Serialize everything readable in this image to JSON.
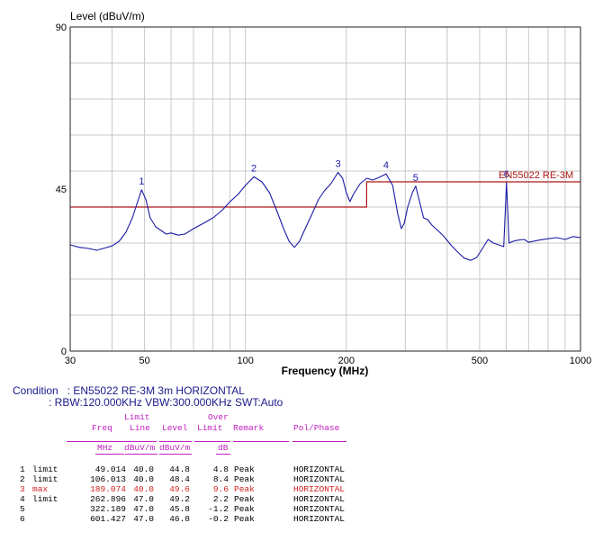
{
  "chart_data": {
    "type": "line",
    "ylabel": "Level (dBuV/m)",
    "xlabel": "Frequency (MHz)",
    "x_scale": "log",
    "xlim": [
      30,
      1000
    ],
    "ylim": [
      0,
      90
    ],
    "y_ticks": [
      "0",
      "45",
      "90"
    ],
    "x_tick_labels": [
      {
        "v": 30,
        "t": "30"
      },
      {
        "v": 50,
        "t": "50"
      },
      {
        "v": 100,
        "t": "100"
      },
      {
        "v": 200,
        "t": "200"
      },
      {
        "v": 500,
        "t": "500"
      },
      {
        "v": 1000,
        "t": "1000"
      }
    ],
    "grid": true,
    "limit_label": "EN55022 RE-3M",
    "limit_line": [
      {
        "f": 30,
        "level": 40.0
      },
      {
        "f": 230,
        "level": 40.0
      },
      {
        "f": 230,
        "level": 47.0
      },
      {
        "f": 1000,
        "level": 47.0
      }
    ],
    "markers": [
      {
        "label": "1",
        "f": 49.014,
        "level": 44.8
      },
      {
        "label": "2",
        "f": 106.013,
        "level": 48.4
      },
      {
        "label": "3",
        "f": 189.074,
        "level": 49.6
      },
      {
        "label": "4",
        "f": 262.896,
        "level": 49.2
      },
      {
        "label": "5",
        "f": 322.189,
        "level": 45.8
      },
      {
        "label": "6",
        "f": 601.427,
        "level": 46.8
      }
    ],
    "trace": [
      [
        30,
        29.5
      ],
      [
        32,
        28.8
      ],
      [
        34,
        28.5
      ],
      [
        36,
        28.0
      ],
      [
        38,
        28.6
      ],
      [
        40,
        29.2
      ],
      [
        42,
        30.5
      ],
      [
        44,
        33.0
      ],
      [
        46,
        37.0
      ],
      [
        47.5,
        41.0
      ],
      [
        49,
        44.8
      ],
      [
        50.5,
        42.0
      ],
      [
        52,
        37.0
      ],
      [
        54,
        34.5
      ],
      [
        56,
        33.5
      ],
      [
        58,
        32.5
      ],
      [
        60,
        32.8
      ],
      [
        63,
        32.2
      ],
      [
        66,
        32.5
      ],
      [
        70,
        34.0
      ],
      [
        75,
        35.5
      ],
      [
        80,
        37.0
      ],
      [
        85,
        39.0
      ],
      [
        90,
        41.5
      ],
      [
        95,
        43.5
      ],
      [
        100,
        46.0
      ],
      [
        106,
        48.4
      ],
      [
        112,
        47.0
      ],
      [
        118,
        44.0
      ],
      [
        124,
        39.0
      ],
      [
        130,
        34.0
      ],
      [
        135,
        30.5
      ],
      [
        140,
        28.8
      ],
      [
        145,
        30.5
      ],
      [
        150,
        33.5
      ],
      [
        158,
        38.0
      ],
      [
        165,
        42.0
      ],
      [
        172,
        44.5
      ],
      [
        180,
        46.5
      ],
      [
        189,
        49.6
      ],
      [
        195,
        48.0
      ],
      [
        200,
        44.0
      ],
      [
        205,
        41.5
      ],
      [
        210,
        43.5
      ],
      [
        220,
        46.5
      ],
      [
        230,
        48.0
      ],
      [
        240,
        47.5
      ],
      [
        250,
        48.2
      ],
      [
        262.9,
        49.2
      ],
      [
        275,
        46.0
      ],
      [
        285,
        38.0
      ],
      [
        292,
        34.0
      ],
      [
        298,
        35.5
      ],
      [
        305,
        40.0
      ],
      [
        315,
        44.0
      ],
      [
        322.2,
        45.8
      ],
      [
        330,
        42.0
      ],
      [
        340,
        37.0
      ],
      [
        350,
        36.5
      ],
      [
        360,
        35.0
      ],
      [
        375,
        33.5
      ],
      [
        390,
        32.0
      ],
      [
        410,
        29.5
      ],
      [
        430,
        27.5
      ],
      [
        450,
        25.8
      ],
      [
        470,
        25.2
      ],
      [
        490,
        26.0
      ],
      [
        510,
        28.5
      ],
      [
        530,
        31.0
      ],
      [
        550,
        30.0
      ],
      [
        570,
        29.5
      ],
      [
        590,
        29.0
      ],
      [
        601.4,
        46.8
      ],
      [
        612,
        30.0
      ],
      [
        630,
        30.5
      ],
      [
        650,
        30.8
      ],
      [
        680,
        31.0
      ],
      [
        700,
        30.2
      ],
      [
        750,
        30.8
      ],
      [
        800,
        31.2
      ],
      [
        850,
        31.5
      ],
      [
        900,
        31.0
      ],
      [
        950,
        31.8
      ],
      [
        1000,
        31.5
      ]
    ]
  },
  "condition": {
    "label": "Condition",
    "line1": ": EN55022 RE-3M 3m HORIZONTAL",
    "line2": ": RBW:120.000KHz VBW:300.000KHz SWT:Auto"
  },
  "table": {
    "hdr_limit": "Limit",
    "hdr_over": "Over",
    "hdr_freq": "Freq",
    "hdr_line": "Line",
    "hdr_level": "Level",
    "hdr_limit2": "Limit",
    "hdr_remark": "Remark",
    "hdr_polphase": "Pol/Phase",
    "unit_freq": "MHz",
    "unit_line": "dBuV/m",
    "unit_level": "dBuV/m",
    "unit_over": "dB",
    "rows": [
      {
        "no": "1",
        "tag": "limit",
        "freq": "49.014",
        "line": "40.0",
        "level": "44.8",
        "over": "4.8",
        "remark": "Peak",
        "pol": "HORIZONTAL",
        "hl": false
      },
      {
        "no": "2",
        "tag": "limit",
        "freq": "106.013",
        "line": "40.0",
        "level": "48.4",
        "over": "8.4",
        "remark": "Peak",
        "pol": "HORIZONTAL",
        "hl": false
      },
      {
        "no": "3",
        "tag": "max",
        "freq": "189.074",
        "line": "40.0",
        "level": "49.6",
        "over": "9.6",
        "remark": "Peak",
        "pol": "HORIZONTAL",
        "hl": true
      },
      {
        "no": "4",
        "tag": "limit",
        "freq": "262.896",
        "line": "47.0",
        "level": "49.2",
        "over": "2.2",
        "remark": "Peak",
        "pol": "HORIZONTAL",
        "hl": false
      },
      {
        "no": "5",
        "tag": "",
        "freq": "322.189",
        "line": "47.0",
        "level": "45.8",
        "over": "-1.2",
        "remark": "Peak",
        "pol": "HORIZONTAL",
        "hl": false
      },
      {
        "no": "6",
        "tag": "",
        "freq": "601.427",
        "line": "47.0",
        "level": "46.8",
        "over": "-0.2",
        "remark": "Peak",
        "pol": "HORIZONTAL",
        "hl": false
      }
    ]
  },
  "colors": {
    "trace": "#1a1aa6",
    "limit": "#b01818",
    "grid": "#c8c8c8",
    "header": "#c020c0",
    "highlight": "#d02020",
    "condition": "#1a1a8a"
  }
}
